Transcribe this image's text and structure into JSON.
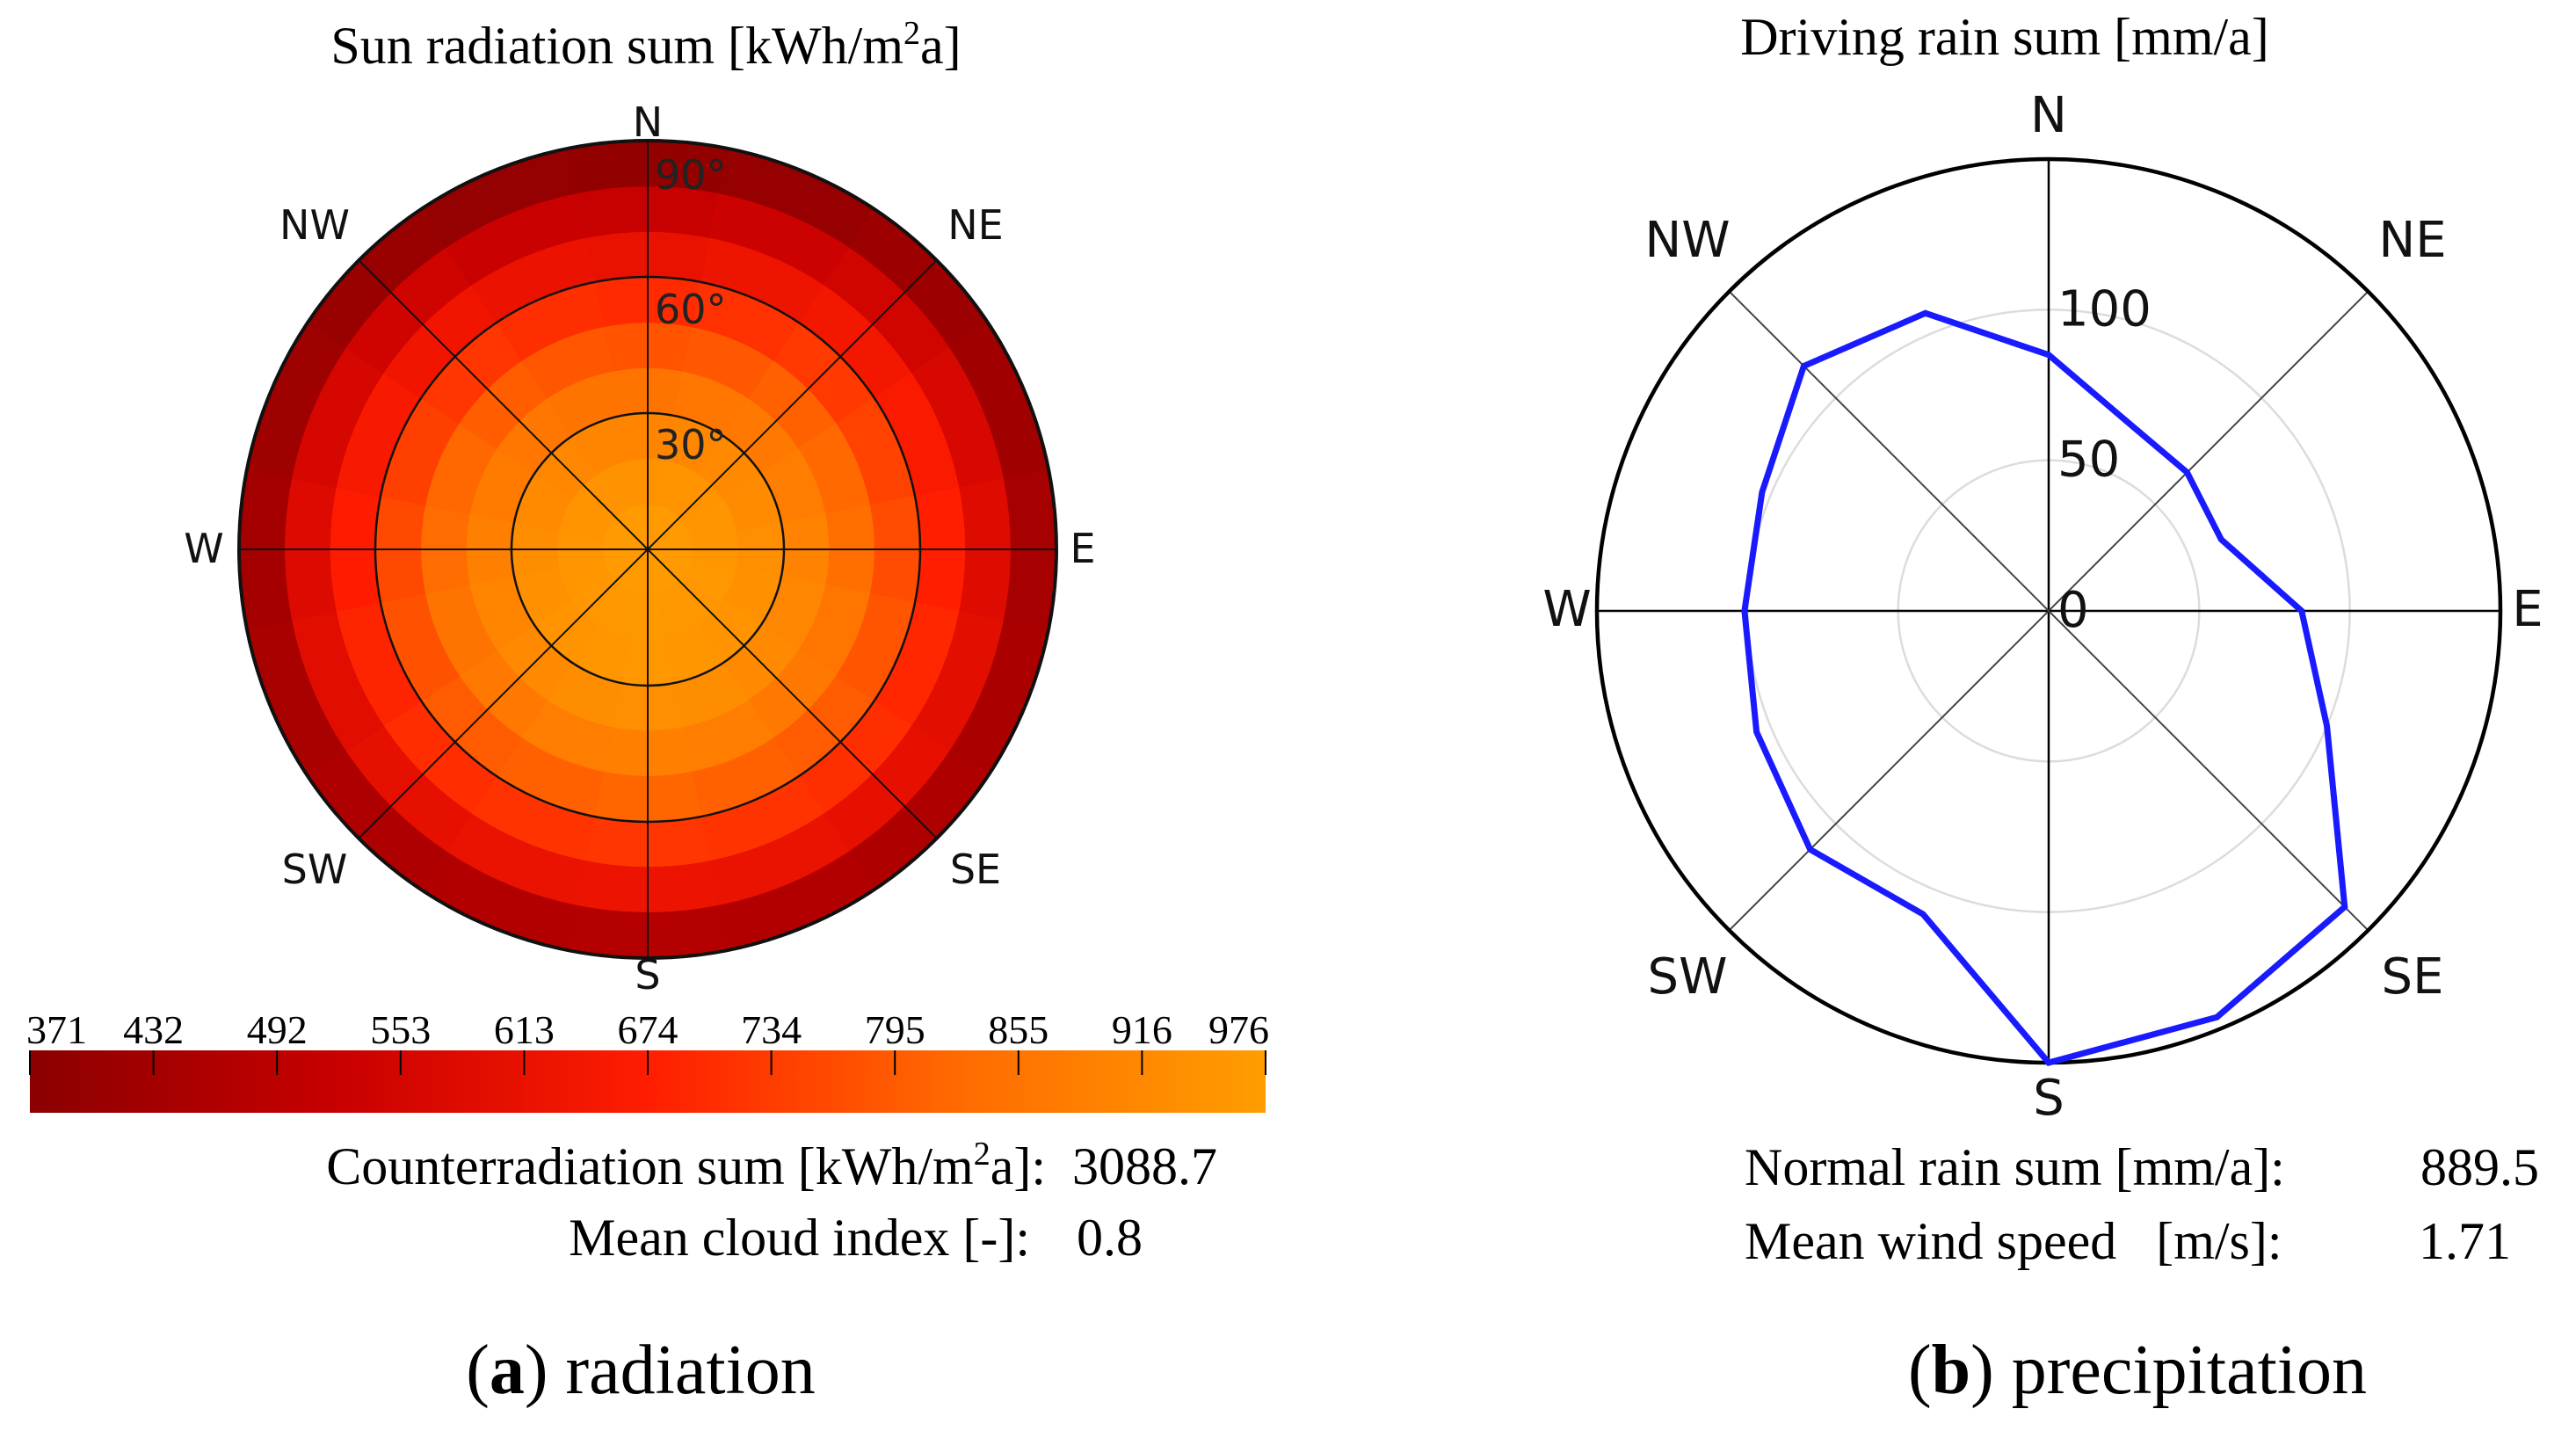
{
  "chart_data": [
    {
      "panel": "a",
      "type": "heatmap",
      "subtype": "polar-sky-hemisphere",
      "title_main": "Sun radiation sum [kWh/m",
      "title_sup": "2",
      "title_end": "a]",
      "directions": [
        "N",
        "NE",
        "E",
        "SE",
        "S",
        "SW",
        "W",
        "NW"
      ],
      "elevation_labels": [
        "90°",
        "60°",
        "30°"
      ],
      "elevation_circles_deg": [
        30,
        60
      ],
      "colorbar": {
        "ticks": [
          371,
          432,
          492,
          553,
          613,
          674,
          734,
          795,
          855,
          916,
          976
        ],
        "min": 371,
        "max": 976,
        "colors": [
          "#8b0000",
          "#c80000",
          "#ff1d00",
          "#ff6a00",
          "#ff9d00"
        ]
      },
      "rings": [
        {
          "zenith_deg": [
            0,
            10
          ],
          "values": [
            966,
            966,
            966,
            966,
            966,
            966,
            966,
            966,
            966,
            966,
            966,
            966,
            966,
            966,
            966,
            966
          ]
        },
        {
          "zenith_deg": [
            10,
            20
          ],
          "values": [
            942,
            948,
            950,
            952,
            955,
            958,
            960,
            962,
            964,
            962,
            958,
            955,
            952,
            950,
            946,
            943
          ]
        },
        {
          "zenith_deg": [
            20,
            30
          ],
          "values": [
            905,
            912,
            918,
            925,
            932,
            940,
            948,
            955,
            958,
            955,
            946,
            938,
            928,
            920,
            912,
            906
          ]
        },
        {
          "zenith_deg": [
            30,
            40
          ],
          "values": [
            852,
            860,
            870,
            882,
            895,
            908,
            918,
            928,
            934,
            928,
            918,
            905,
            890,
            876,
            864,
            855
          ]
        },
        {
          "zenith_deg": [
            40,
            50
          ],
          "values": [
            780,
            790,
            805,
            822,
            840,
            856,
            868,
            880,
            888,
            880,
            868,
            852,
            835,
            818,
            800,
            786
          ]
        },
        {
          "zenith_deg": [
            50,
            60
          ],
          "values": [
            700,
            712,
            728,
            746,
            765,
            782,
            796,
            808,
            816,
            808,
            795,
            778,
            758,
            740,
            722,
            706
          ]
        },
        {
          "zenith_deg": [
            60,
            70
          ],
          "values": [
            612,
            625,
            640,
            658,
            676,
            692,
            706,
            716,
            722,
            716,
            704,
            688,
            670,
            652,
            634,
            618
          ]
        },
        {
          "zenith_deg": [
            70,
            80
          ],
          "values": [
            520,
            532,
            548,
            564,
            580,
            595,
            607,
            617,
            622,
            617,
            606,
            592,
            576,
            560,
            542,
            526
          ]
        },
        {
          "zenith_deg": [
            80,
            90
          ],
          "values": [
            392,
            400,
            412,
            425,
            438,
            450,
            460,
            468,
            472,
            468,
            458,
            446,
            432,
            420,
            406,
            395
          ]
        }
      ],
      "stats": [
        {
          "label": "Counterradiation sum [kWh/m",
          "sup": "2",
          "label_end": "a]:",
          "value": "3088.7"
        },
        {
          "label": "Mean cloud index [-]:",
          "value": "0.8"
        }
      ],
      "caption_letter": "a",
      "caption_text": "radiation"
    },
    {
      "panel": "b",
      "type": "line",
      "subtype": "polar",
      "title": "Driving rain sum [mm/a]",
      "directions": [
        "N",
        "NE",
        "E",
        "SE",
        "S",
        "SW",
        "W",
        "NW"
      ],
      "r_ticks": [
        0,
        50,
        100
      ],
      "r_max": 150,
      "series": [
        {
          "name": "Driving rain",
          "color": "#1a1aff",
          "angles_deg": [
            0,
            22.5,
            45,
            67.5,
            90,
            112.5,
            135,
            157.5,
            180,
            202.5,
            225,
            247.5,
            270,
            292.5,
            315,
            337.5
          ],
          "values": [
            85,
            68,
            65,
            62,
            84,
            100,
            139,
            146,
            150,
            109,
            112,
            105,
            101,
            103,
            115,
            107
          ]
        }
      ],
      "stats": [
        {
          "label": "Normal rain sum [mm/a]:",
          "value": "889.5"
        },
        {
          "label": "Mean wind speed   [m/s]:",
          "value": "1.71"
        }
      ],
      "caption_letter": "b",
      "caption_text": "precipitation"
    }
  ]
}
